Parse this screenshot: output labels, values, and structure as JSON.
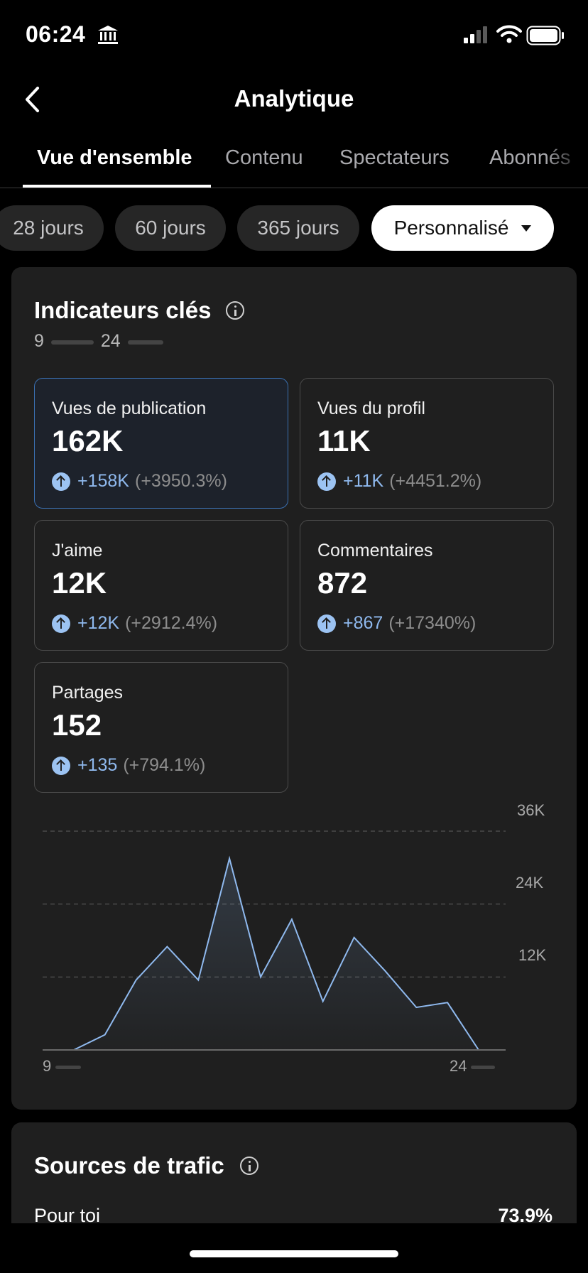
{
  "status_bar": {
    "time": "06:24"
  },
  "header": {
    "title": "Analytique"
  },
  "tabs": [
    {
      "label": "Vue d'ensemble",
      "active": true
    },
    {
      "label": "Contenu",
      "active": false
    },
    {
      "label": "Spectateurs",
      "active": false
    },
    {
      "label": "Abonnés",
      "active": false
    }
  ],
  "periods": [
    {
      "label": "28 jours",
      "selected": false
    },
    {
      "label": "60 jours",
      "selected": false
    },
    {
      "label": "365 jours",
      "selected": false
    },
    {
      "label": "Personnalisé",
      "selected": true
    }
  ],
  "key_metrics": {
    "title": "Indicateurs clés",
    "date_start": "9",
    "date_end": "24",
    "items": [
      {
        "label": "Vues de publication",
        "value": "162K",
        "change": "+158K",
        "change_pct": "(+3950.3%)",
        "active": true
      },
      {
        "label": "Vues du profil",
        "value": "11K",
        "change": "+11K",
        "change_pct": "(+4451.2%)",
        "active": false
      },
      {
        "label": "J'aime",
        "value": "12K",
        "change": "+12K",
        "change_pct": "(+2912.4%)",
        "active": false
      },
      {
        "label": "Commentaires",
        "value": "872",
        "change": "+867",
        "change_pct": "(+17340%)",
        "active": false
      },
      {
        "label": "Partages",
        "value": "152",
        "change": "+135",
        "change_pct": "(+794.1%)",
        "active": false
      }
    ]
  },
  "chart_data": {
    "type": "area",
    "x_labels": [
      "9",
      "24"
    ],
    "y_ticks": [
      "12K",
      "24K",
      "36K"
    ],
    "ylim": [
      0,
      36000
    ],
    "grid": true,
    "series": [
      {
        "values": [
          0,
          0,
          2500,
          11500,
          17000,
          11500,
          31500,
          12000,
          21500,
          8000,
          18500,
          13000,
          7000,
          7800,
          0
        ]
      }
    ],
    "line_color": "#8fb9ee"
  },
  "traffic_sources": {
    "title": "Sources de trafic",
    "rows": [
      {
        "label": "Pour toi",
        "value": "73.9%"
      }
    ]
  }
}
